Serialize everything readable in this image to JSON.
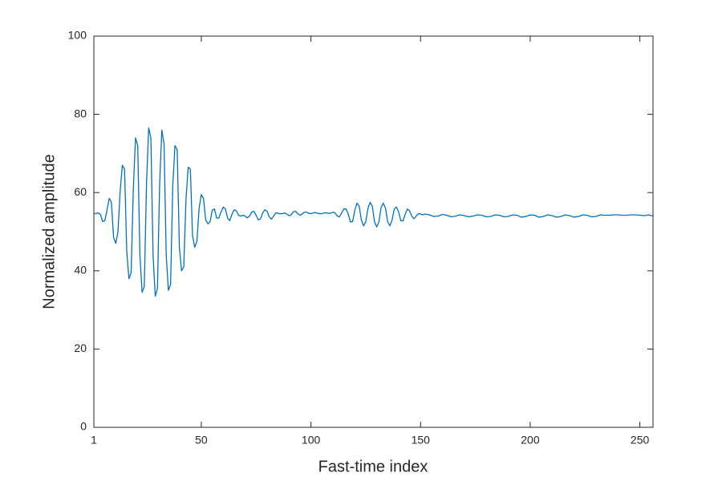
{
  "chart_data": {
    "type": "line",
    "xlabel": "Fast-time index",
    "ylabel": "Normalized amplitude",
    "color": "#0072bd",
    "xlim": [
      1,
      256
    ],
    "ylim": [
      0,
      100
    ],
    "xticks": [
      1,
      50,
      100,
      150,
      200,
      250
    ],
    "yticks": [
      0,
      20,
      40,
      60,
      80,
      100
    ],
    "grid": false,
    "x": [
      1,
      2,
      3,
      4,
      5,
      6,
      7,
      8,
      9,
      10,
      11,
      12,
      13,
      14,
      15,
      16,
      17,
      18,
      19,
      20,
      21,
      22,
      23,
      24,
      25,
      26,
      27,
      28,
      29,
      30,
      31,
      32,
      33,
      34,
      35,
      36,
      37,
      38,
      39,
      40,
      41,
      42,
      43,
      44,
      45,
      46,
      47,
      48,
      49,
      50,
      51,
      52,
      53,
      54,
      55,
      56,
      57,
      58,
      59,
      60,
      61,
      62,
      63,
      64,
      65,
      66,
      67,
      68,
      69,
      70,
      71,
      72,
      73,
      74,
      75,
      76,
      77,
      78,
      79,
      80,
      81,
      82,
      83,
      84,
      85,
      86,
      87,
      88,
      89,
      90,
      91,
      92,
      93,
      94,
      95,
      96,
      97,
      98,
      99,
      100,
      101,
      102,
      103,
      104,
      105,
      106,
      107,
      108,
      109,
      110,
      111,
      112,
      113,
      114,
      115,
      116,
      117,
      118,
      119,
      120,
      121,
      122,
      123,
      124,
      125,
      126,
      127,
      128,
      129,
      130,
      131,
      132,
      133,
      134,
      135,
      136,
      137,
      138,
      139,
      140,
      141,
      142,
      143,
      144,
      145,
      146,
      147,
      148,
      149,
      150,
      151,
      152,
      154,
      156,
      158,
      160,
      162,
      164,
      166,
      168,
      170,
      172,
      174,
      176,
      178,
      180,
      182,
      184,
      186,
      188,
      190,
      192,
      194,
      196,
      198,
      200,
      202,
      204,
      206,
      208,
      210,
      212,
      214,
      216,
      218,
      220,
      222,
      224,
      226,
      228,
      230,
      232,
      234,
      236,
      238,
      240,
      242,
      244,
      246,
      248,
      250,
      252,
      254,
      256
    ],
    "values": [
      54.5,
      54.7,
      54.8,
      54.4,
      52.6,
      52.8,
      55.5,
      58.5,
      57.5,
      48.5,
      47,
      50,
      60.5,
      67,
      66,
      45,
      38,
      39.5,
      61,
      74,
      72,
      44,
      34.5,
      36,
      62,
      76.5,
      74,
      44,
      33.5,
      35.5,
      62,
      76,
      72.5,
      44,
      35,
      36.5,
      62,
      72,
      71,
      46,
      40,
      41,
      58,
      66.5,
      66,
      49,
      46,
      47.5,
      56,
      59.5,
      58.5,
      53,
      52,
      52.5,
      55.5,
      55.8,
      53.5,
      53.5,
      55,
      56.3,
      55.8,
      53.5,
      52.8,
      54.5,
      55.6,
      55.3,
      54.2,
      54,
      54.2,
      54,
      53.5,
      54,
      55,
      55.2,
      54.2,
      53,
      53.3,
      54.8,
      55.6,
      55.2,
      53.8,
      53.2,
      54,
      54.8,
      54.7,
      54.6,
      54.6,
      54.8,
      54.5,
      54.1,
      54.3,
      55.1,
      55.2,
      54.6,
      54.2,
      54.5,
      55,
      55,
      54.7,
      54.6,
      54.8,
      54.9,
      54.7,
      54.6,
      54.6,
      54.8,
      54.8,
      54.7,
      54.7,
      55,
      54.8,
      54,
      53.8,
      54.8,
      55.8,
      55.8,
      54.5,
      52.5,
      52.6,
      55.5,
      57.3,
      56.5,
      53,
      51.5,
      52.5,
      56,
      57.5,
      56.5,
      52.5,
      51.2,
      52.5,
      56.2,
      57.3,
      56,
      52.5,
      51.5,
      53,
      55.8,
      56.3,
      55,
      52.8,
      52.8,
      54.5,
      55.8,
      55.3,
      54,
      53.3,
      54,
      54.6,
      54.5,
      54.3,
      54.5,
      54.3,
      53.9,
      54.0,
      54.4,
      54.2,
      53.8,
      54.0,
      54.3,
      54.1,
      53.8,
      54.0,
      54.3,
      54.2,
      53.8,
      53.9,
      54.3,
      54.2,
      53.8,
      53.9,
      54.3,
      54.2,
      53.7,
      53.9,
      54.3,
      54.2,
      53.7,
      53.9,
      54.3,
      54.1,
      53.7,
      53.9,
      54.3,
      54.1,
      53.7,
      53.9,
      54.3,
      54.2,
      53.8,
      53.9,
      54.3,
      54.2,
      54.2,
      54.3,
      54.3,
      54.2,
      54.2,
      54.3,
      54.3,
      54.2,
      54.1,
      54.3,
      54.0
    ]
  }
}
